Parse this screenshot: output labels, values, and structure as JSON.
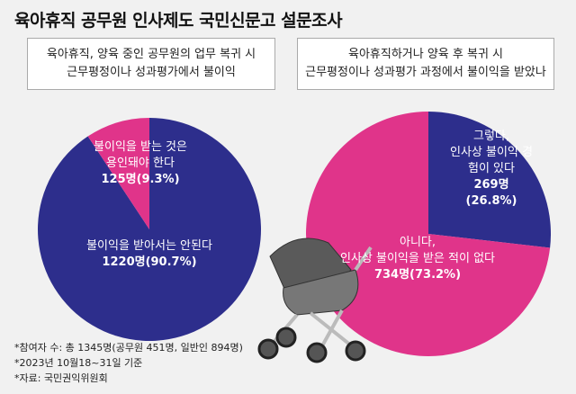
{
  "title": "육아휴직 공무원 인사제도 국민신문고 설문조사",
  "chart_data": [
    {
      "type": "pie",
      "subtitle": "육아휴직, 양육 중인 공무원의 업무 복귀 시\n근무평정이나 성과평가에서 불이익",
      "categories": [
        "불이익을 받아서는 안된다",
        "불이익을 받는 것은\n용인돼야 한다"
      ],
      "values": [
        1220,
        125
      ],
      "value_labels": [
        "1220명(90.7%)",
        "125명(9.3%)"
      ],
      "colors": [
        "#2d2e8c",
        "#e0348a"
      ]
    },
    {
      "type": "pie",
      "subtitle": "육아휴직하거나 양육 후 복귀 시\n근무평정이나 성과평가 과정에서 불이익을 받았나",
      "categories": [
        "그렇다,\n인사상 불이익 경험이 있다",
        "아니다,\n인사상 불이익을 받은 적이 없다"
      ],
      "values": [
        269,
        734
      ],
      "value_labels": [
        "269명(26.8%)",
        "734명(73.2%)"
      ],
      "colors": [
        "#2d2e8c",
        "#e0348a"
      ]
    }
  ],
  "notes": [
    "*참여자 수: 총 1345명(공무원 451명, 일반인 894명)",
    "*2023년 10월18~31일 기준",
    "*자료: 국민권익위원회"
  ]
}
